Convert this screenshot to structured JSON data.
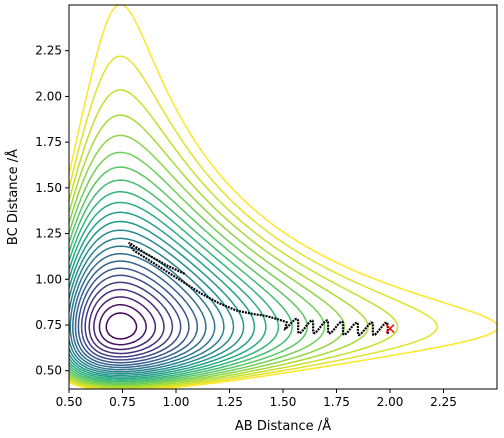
{
  "chart_data": {
    "type": "contour",
    "title": "",
    "xlabel": "AB Distance /Å",
    "ylabel": "BC Distance /Å",
    "xlim": [
      0.5,
      2.5
    ],
    "ylim": [
      0.4,
      2.5
    ],
    "xticks": [
      0.5,
      0.75,
      1.0,
      1.25,
      1.5,
      1.75,
      2.0,
      2.25
    ],
    "xtick_labels": [
      "0.50",
      "0.75",
      "1.00",
      "1.25",
      "1.50",
      "1.75",
      "2.00",
      "2.25"
    ],
    "yticks": [
      0.5,
      0.75,
      1.0,
      1.25,
      1.5,
      1.75,
      2.0,
      2.25
    ],
    "ytick_labels": [
      "0.50",
      "0.75",
      "1.00",
      "1.25",
      "1.50",
      "1.75",
      "2.00",
      "2.25"
    ],
    "colormap": "viridis",
    "contour_levels": 24,
    "grid": false,
    "trajectory": {
      "color": "#000000",
      "start": [
        1.04,
        1.03
      ],
      "end": [
        2.0,
        0.73
      ],
      "points": [
        [
          1.04,
          1.03
        ],
        [
          0.95,
          1.08
        ],
        [
          0.86,
          1.14
        ],
        [
          0.78,
          1.2
        ],
        [
          0.8,
          1.16
        ],
        [
          0.88,
          1.1
        ],
        [
          0.96,
          1.04
        ],
        [
          1.04,
          0.98
        ],
        [
          1.12,
          0.92
        ],
        [
          1.2,
          0.87
        ],
        [
          1.28,
          0.83
        ],
        [
          1.36,
          0.81
        ],
        [
          1.42,
          0.8
        ],
        [
          1.48,
          0.78
        ],
        [
          1.53,
          0.76
        ],
        [
          1.57,
          0.74
        ],
        [
          1.62,
          0.74
        ],
        [
          1.7,
          0.74
        ],
        [
          1.8,
          0.73
        ],
        [
          1.9,
          0.73
        ],
        [
          2.0,
          0.73
        ]
      ]
    },
    "end_marker": {
      "x": 2.0,
      "y": 0.73,
      "color": "#ff0000",
      "symbol": "x"
    }
  }
}
